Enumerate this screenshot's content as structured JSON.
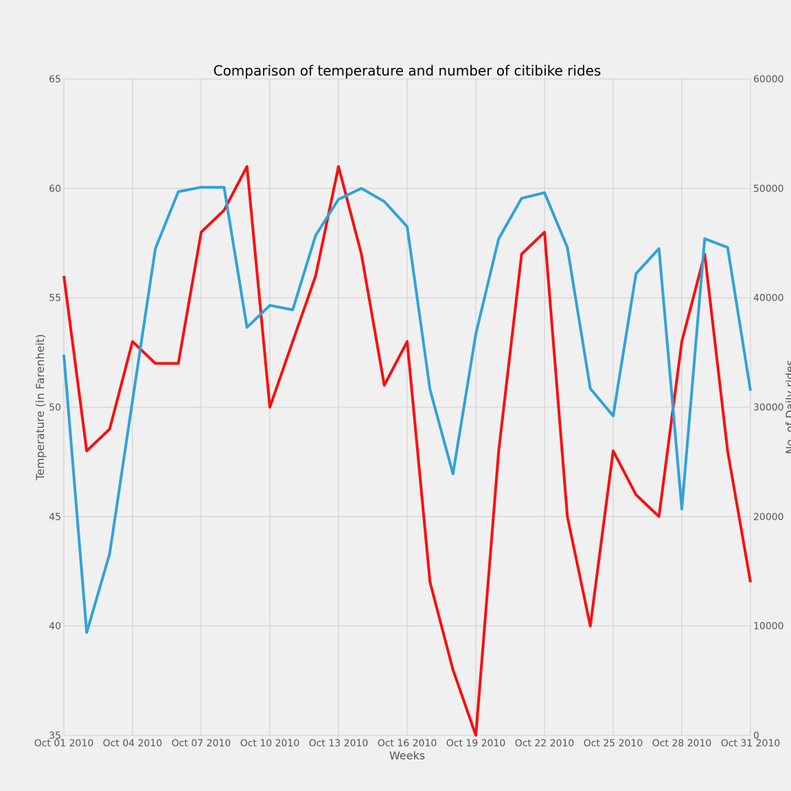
{
  "chart_data": {
    "type": "line",
    "title": "Comparison of temperature and number of citibike rides",
    "xlabel": "Weeks",
    "ylabel": "Temperature (in Farenheit)",
    "ylabel_right": "No. of Daily rides",
    "grid": true,
    "x": [
      "2010-10-01",
      "2010-10-02",
      "2010-10-03",
      "2010-10-04",
      "2010-10-05",
      "2010-10-06",
      "2010-10-07",
      "2010-10-08",
      "2010-10-09",
      "2010-10-10",
      "2010-10-11",
      "2010-10-12",
      "2010-10-13",
      "2010-10-14",
      "2010-10-15",
      "2010-10-16",
      "2010-10-17",
      "2010-10-18",
      "2010-10-19",
      "2010-10-20",
      "2010-10-21",
      "2010-10-22",
      "2010-10-23",
      "2010-10-24",
      "2010-10-25",
      "2010-10-26",
      "2010-10-27",
      "2010-10-28",
      "2010-10-29",
      "2010-10-30",
      "2010-10-31"
    ],
    "x_ticks": [
      "Oct 01 2010",
      "Oct 04 2010",
      "Oct 07 2010",
      "Oct 10 2010",
      "Oct 13 2010",
      "Oct 16 2010",
      "Oct 19 2010",
      "Oct 22 2010",
      "Oct 25 2010",
      "Oct 28 2010",
      "Oct 31 2010"
    ],
    "x_tick_dates": [
      "2010-10-01",
      "2010-10-04",
      "2010-10-07",
      "2010-10-10",
      "2010-10-13",
      "2010-10-16",
      "2010-10-19",
      "2010-10-22",
      "2010-10-25",
      "2010-10-28",
      "2010-10-31"
    ],
    "y_left": {
      "range": [
        35,
        65
      ],
      "ticks": [
        35,
        40,
        45,
        50,
        55,
        60,
        65
      ]
    },
    "y_right": {
      "range": [
        0,
        60000
      ],
      "ticks": [
        0,
        10000,
        20000,
        30000,
        40000,
        50000,
        60000
      ]
    },
    "series": [
      {
        "axis": "left",
        "color": "#fc0d0d",
        "values": [
          56,
          48,
          49,
          53,
          52,
          52,
          58,
          59,
          61,
          50,
          53,
          56,
          61,
          57,
          51,
          53,
          42,
          38,
          35,
          48,
          57,
          58,
          45,
          40,
          48,
          46,
          45,
          53,
          57,
          48,
          42
        ]
      },
      {
        "axis": "right",
        "color": "#30a2da",
        "values": [
          34800,
          9400,
          16600,
          30600,
          44500,
          49700,
          50100,
          50100,
          37300,
          39300,
          38900,
          45700,
          49000,
          50000,
          48800,
          46500,
          31600,
          23900,
          36700,
          45400,
          49100,
          49600,
          44600,
          31700,
          29200,
          42200,
          44500,
          20700,
          45400,
          44600,
          31500
        ]
      }
    ]
  }
}
